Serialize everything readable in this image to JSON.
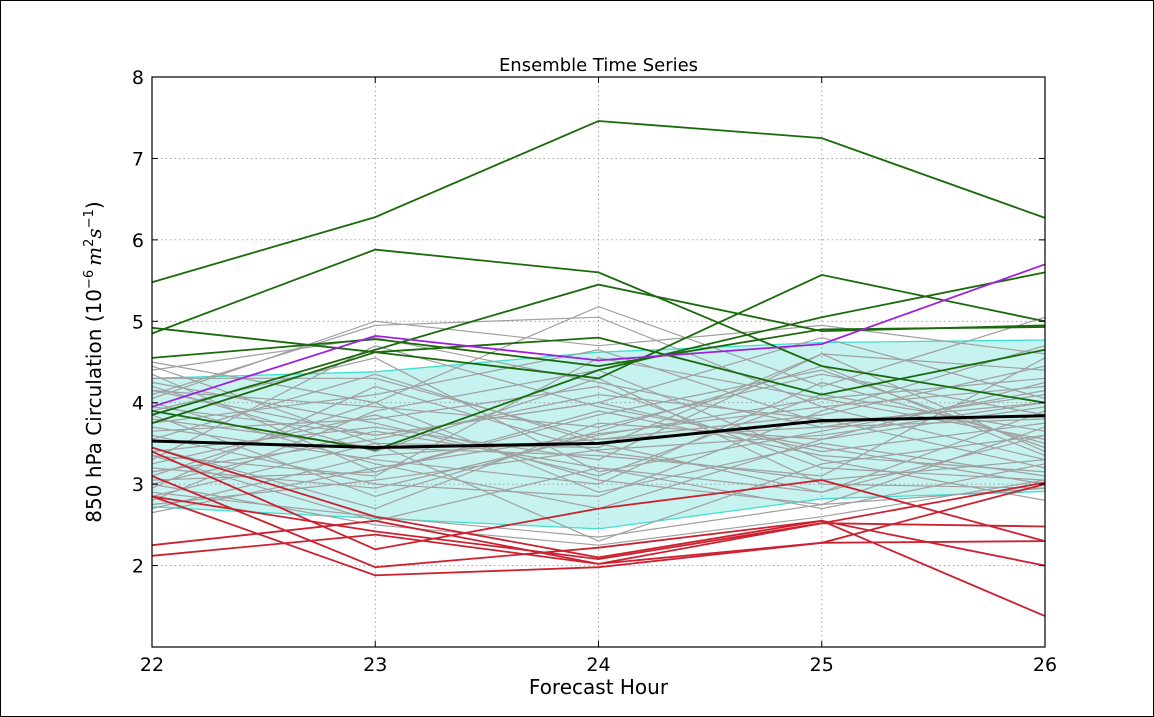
{
  "chart_data": {
    "type": "line",
    "title": "Ensemble Time Series",
    "xlabel": "Forecast Hour",
    "ylabel_main": "850 hPa Circulation (",
    "ylabel_exp_base": "10",
    "ylabel_exp_sup": "−6",
    "ylabel_units_m": "m",
    "ylabel_units_m_sup": "2",
    "ylabel_units_s": "s",
    "ylabel_units_s_sup": "−1",
    "ylabel_close": ")",
    "x": [
      22,
      23,
      24,
      25,
      26
    ],
    "xlim": [
      22,
      26
    ],
    "ylim": [
      1,
      8
    ],
    "xticks": [
      "22",
      "23",
      "24",
      "25",
      "26"
    ],
    "yticks": [
      "2",
      "3",
      "4",
      "5",
      "6",
      "7",
      "8"
    ],
    "grid": true,
    "colors": {
      "gray": "#a0a0a0",
      "green": "#1a6a0c",
      "red": "#cc2130",
      "purple": "#a020e0",
      "mean": "#000000",
      "band_fill": "#c6f2ef",
      "band_edge": "#40e0d0"
    },
    "spread_band": {
      "upper": [
        4.3,
        4.38,
        4.62,
        4.74,
        4.77
      ],
      "lower": [
        2.72,
        2.58,
        2.45,
        2.82,
        2.91
      ]
    },
    "gray_series": [
      [
        2.65,
        3.2,
        3.62,
        3.95,
        4.2
      ],
      [
        2.7,
        3.35,
        3.55,
        3.7,
        4.1
      ],
      [
        2.75,
        3.05,
        3.42,
        3.6,
        4.0
      ],
      [
        2.8,
        3.9,
        4.4,
        3.3,
        2.8
      ],
      [
        2.85,
        3.5,
        2.3,
        3.25,
        3.6
      ],
      [
        2.95,
        4.2,
        3.4,
        3.05,
        3.3
      ],
      [
        3.0,
        3.65,
        3.2,
        2.9,
        3.9
      ],
      [
        3.05,
        3.15,
        3.85,
        4.4,
        3.45
      ],
      [
        3.1,
        4.0,
        2.9,
        3.5,
        3.1
      ],
      [
        3.15,
        3.55,
        4.1,
        3.8,
        3.2
      ],
      [
        3.2,
        2.95,
        3.6,
        4.05,
        4.3
      ],
      [
        3.25,
        3.85,
        3.05,
        2.75,
        3.7
      ],
      [
        3.3,
        4.7,
        3.95,
        3.45,
        3.0
      ],
      [
        3.35,
        3.1,
        4.55,
        4.05,
        3.55
      ],
      [
        3.4,
        3.7,
        3.3,
        4.6,
        4.4
      ],
      [
        3.45,
        2.7,
        3.75,
        3.55,
        3.95
      ],
      [
        3.55,
        4.35,
        3.5,
        2.9,
        3.6
      ],
      [
        3.6,
        3.0,
        2.85,
        3.9,
        4.7
      ],
      [
        3.65,
        3.8,
        4.2,
        3.2,
        3.05
      ],
      [
        3.7,
        3.3,
        3.0,
        4.25,
        3.5
      ],
      [
        3.75,
        4.1,
        4.65,
        3.75,
        4.0
      ],
      [
        3.8,
        3.45,
        3.35,
        3.1,
        4.55
      ],
      [
        3.85,
        2.85,
        3.65,
        4.45,
        3.35
      ],
      [
        3.9,
        4.55,
        3.15,
        3.65,
        4.15
      ],
      [
        3.95,
        3.6,
        4.0,
        3.4,
        3.75
      ],
      [
        4.0,
        3.25,
        2.7,
        3.55,
        4.25
      ],
      [
        4.1,
        4.95,
        5.05,
        3.95,
        3.3
      ],
      [
        4.15,
        3.95,
        3.7,
        4.35,
        3.85
      ],
      [
        4.2,
        3.4,
        4.3,
        3.0,
        2.95
      ],
      [
        4.25,
        3.75,
        3.1,
        4.1,
        3.65
      ],
      [
        4.3,
        4.3,
        3.55,
        3.85,
        4.45
      ],
      [
        4.35,
        3.15,
        3.9,
        3.35,
        3.15
      ],
      [
        4.4,
        4.8,
        4.25,
        3.7,
        3.8
      ],
      [
        4.45,
        3.5,
        3.45,
        4.6,
        3.4
      ],
      [
        4.5,
        4.0,
        5.18,
        4.2,
        5.05
      ],
      [
        4.05,
        5.0,
        4.7,
        4.95,
        4.6
      ],
      [
        3.0,
        2.5,
        2.25,
        2.6,
        3.05
      ],
      [
        2.9,
        2.6,
        2.35,
        2.75,
        2.95
      ],
      [
        3.35,
        2.55,
        3.2,
        2.7,
        3.25
      ],
      [
        4.15,
        3.6,
        4.0,
        4.8,
        4.05
      ]
    ],
    "red_series": [
      [
        3.45,
        2.6,
        2.1,
        2.55,
        2.0
      ],
      [
        3.4,
        2.2,
        2.7,
        3.05,
        2.3
      ],
      [
        3.1,
        1.98,
        2.22,
        2.55,
        1.38
      ],
      [
        2.85,
        2.42,
        2.08,
        2.52,
        2.48
      ],
      [
        2.85,
        1.88,
        1.98,
        2.28,
        2.3
      ],
      [
        2.25,
        2.55,
        2.02,
        2.28,
        3.0
      ],
      [
        2.12,
        2.38,
        2.02,
        2.52,
        3.02
      ]
    ],
    "green_series": [
      [
        5.48,
        6.28,
        7.46,
        7.25,
        6.27
      ],
      [
        4.85,
        5.88,
        5.6,
        4.45,
        4.0
      ],
      [
        4.92,
        4.62,
        4.8,
        4.1,
        4.65
      ],
      [
        4.55,
        4.78,
        4.45,
        4.9,
        4.93
      ],
      [
        3.75,
        4.62,
        4.3,
        5.57,
        5.0
      ],
      [
        3.9,
        3.42,
        4.4,
        5.05,
        5.6
      ],
      [
        3.85,
        4.65,
        5.45,
        4.88,
        4.95
      ]
    ],
    "purple_series": [
      3.95,
      4.82,
      4.52,
      4.72,
      5.7
    ],
    "mean_series": [
      3.53,
      3.45,
      3.5,
      3.78,
      3.84
    ]
  }
}
